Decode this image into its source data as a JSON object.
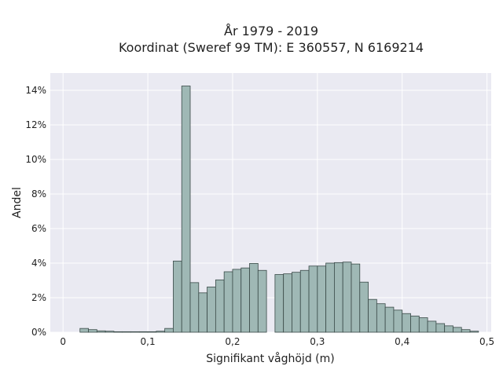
{
  "chart_data": {
    "type": "bar",
    "title_line1": "År 1979 - 2019",
    "title_line2": "Koordinat (Sweref 99 TM): E 360557, N 6169214",
    "xlabel": "Signifikant våghöjd (m)",
    "ylabel": "Andel",
    "xlim": [
      -0.015,
      0.505
    ],
    "ylim": [
      0,
      0.15
    ],
    "xticks": [
      0,
      0.1,
      0.2,
      0.3,
      0.4,
      0.5
    ],
    "xtick_labels": [
      "0",
      "0,1",
      "0,2",
      "0,3",
      "0,4",
      "0,5"
    ],
    "yticks": [
      0,
      0.02,
      0.04,
      0.06,
      0.08,
      0.1,
      0.12,
      0.14
    ],
    "ytick_labels": [
      "0%",
      "2%",
      "4%",
      "6%",
      "8%",
      "10%",
      "12%",
      "14%"
    ],
    "bin_width": 0.01,
    "bins_start": [
      0.02,
      0.03,
      0.04,
      0.05,
      0.06,
      0.07,
      0.08,
      0.09,
      0.1,
      0.11,
      0.12,
      0.13,
      0.14,
      0.15,
      0.16,
      0.17,
      0.18,
      0.19,
      0.2,
      0.21,
      0.22,
      0.23,
      0.24,
      0.25,
      0.26,
      0.27,
      0.28,
      0.29,
      0.3,
      0.31,
      0.32,
      0.33,
      0.34,
      0.35,
      0.36,
      0.37,
      0.38,
      0.39,
      0.4,
      0.41,
      0.42,
      0.43,
      0.44,
      0.45,
      0.46,
      0.47,
      0.48
    ],
    "values": [
      0.0022,
      0.0015,
      0.0008,
      0.0006,
      0.0003,
      0.0003,
      0.0003,
      0.0003,
      0.0003,
      0.0006,
      0.0022,
      0.0412,
      0.1425,
      0.0287,
      0.0228,
      0.0262,
      0.0303,
      0.035,
      0.0364,
      0.0372,
      0.0398,
      0.0358,
      0.0,
      0.0334,
      0.0338,
      0.0347,
      0.0358,
      0.0383,
      0.0383,
      0.04,
      0.0403,
      0.0406,
      0.0395,
      0.029,
      0.019,
      0.0165,
      0.0145,
      0.0128,
      0.0108,
      0.0094,
      0.0084,
      0.0064,
      0.005,
      0.0037,
      0.0028,
      0.0015,
      0.0006
    ],
    "bar_color": "#9fb8b5",
    "bar_edge_color": "#3a4a48",
    "plot_background": "#eaeaf2",
    "grid": true,
    "grid_color": "#ffffff"
  }
}
